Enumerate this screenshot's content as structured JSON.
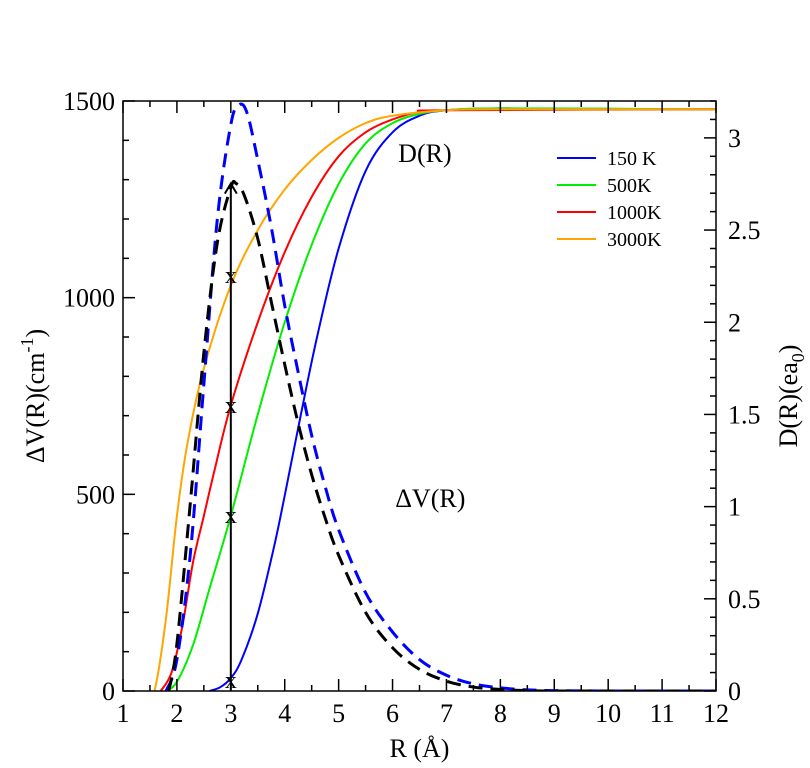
{
  "chart_data": {
    "type": "line",
    "xlabel": "R  (Å)",
    "ylabel_left": "ΔV(R)(cm-1)",
    "ylabel_left_parts": {
      "main": "ΔV(R)(cm",
      "sup": "-1",
      "close": ")"
    },
    "ylabel_right": "D(R)(ea0)",
    "ylabel_right_parts": {
      "main": "D(R)(ea",
      "sub": "0",
      "close": ")"
    },
    "xlim": [
      1,
      12
    ],
    "ylim_left": [
      0,
      1500
    ],
    "ylim_right": [
      0,
      3.2
    ],
    "xticks": [
      1,
      2,
      3,
      4,
      5,
      6,
      7,
      8,
      9,
      10,
      11,
      12
    ],
    "yticks_left": [
      0,
      500,
      1000,
      1500
    ],
    "yticks_right": [
      0,
      0.5,
      1,
      1.5,
      2,
      2.5,
      3
    ],
    "yticks_right_labels": [
      "0",
      "0.5",
      "1",
      "1.5",
      "2",
      "2.5",
      "3"
    ],
    "annotations": [
      {
        "text": "D(R)",
        "x": 6.6,
        "y": 1345
      },
      {
        "text": "ΔV(R)",
        "x": 6.7,
        "y": 468
      }
    ],
    "legend": [
      "150 K",
      "500K",
      "1000K",
      "3000K"
    ],
    "dipole_series": [
      {
        "name": "150 K",
        "color": "#0000ff",
        "axis": "right",
        "points": [
          [
            2.6,
            0
          ],
          [
            2.8,
            0.02
          ],
          [
            3.0,
            0.07
          ],
          [
            3.2,
            0.17
          ],
          [
            3.5,
            0.42
          ],
          [
            3.8,
            0.78
          ],
          [
            4.0,
            1.06
          ],
          [
            4.3,
            1.5
          ],
          [
            4.6,
            1.92
          ],
          [
            5.0,
            2.4
          ],
          [
            5.5,
            2.82
          ],
          [
            6.0,
            3.03
          ],
          [
            6.5,
            3.12
          ],
          [
            7.0,
            3.15
          ],
          [
            8.0,
            3.16
          ],
          [
            9.0,
            3.155
          ],
          [
            12.0,
            3.155
          ]
        ]
      },
      {
        "name": "500K",
        "color": "#00ee00",
        "axis": "right",
        "points": [
          [
            1.8,
            0
          ],
          [
            2.0,
            0.05
          ],
          [
            2.3,
            0.25
          ],
          [
            2.6,
            0.55
          ],
          [
            3.0,
            0.95
          ],
          [
            3.5,
            1.5
          ],
          [
            4.0,
            2.0
          ],
          [
            4.5,
            2.42
          ],
          [
            5.0,
            2.75
          ],
          [
            5.5,
            2.97
          ],
          [
            6.0,
            3.08
          ],
          [
            6.5,
            3.13
          ],
          [
            7.0,
            3.15
          ],
          [
            8.0,
            3.16
          ],
          [
            12.0,
            3.155
          ]
        ]
      },
      {
        "name": "1000K",
        "color": "#ff0000",
        "axis": "right",
        "points": [
          [
            1.7,
            0
          ],
          [
            1.9,
            0.1
          ],
          [
            2.1,
            0.35
          ],
          [
            2.3,
            0.7
          ],
          [
            2.5,
            0.95
          ],
          [
            2.7,
            1.2
          ],
          [
            3.0,
            1.55
          ],
          [
            3.5,
            2.0
          ],
          [
            4.0,
            2.38
          ],
          [
            4.5,
            2.68
          ],
          [
            5.0,
            2.9
          ],
          [
            5.5,
            3.03
          ],
          [
            6.0,
            3.1
          ],
          [
            6.5,
            3.14
          ],
          [
            7.0,
            3.15
          ],
          [
            12.0,
            3.155
          ]
        ]
      },
      {
        "name": "3000K",
        "color": "#ffa500",
        "axis": "right",
        "points": [
          [
            1.5,
            0
          ],
          [
            1.6,
            0.02
          ],
          [
            1.8,
            0.4
          ],
          [
            2.0,
            0.95
          ],
          [
            2.2,
            1.35
          ],
          [
            2.5,
            1.75
          ],
          [
            3.0,
            2.2
          ],
          [
            3.5,
            2.5
          ],
          [
            4.0,
            2.72
          ],
          [
            4.5,
            2.88
          ],
          [
            5.0,
            3.0
          ],
          [
            5.5,
            3.08
          ],
          [
            6.0,
            3.12
          ],
          [
            7.0,
            3.15
          ],
          [
            8.0,
            3.155
          ],
          [
            12.0,
            3.155
          ]
        ]
      }
    ],
    "potential_series": [
      {
        "name": "ΔV(R) blue",
        "color": "#0000ff",
        "dash": true,
        "axis": "left",
        "points": [
          [
            1.8,
            0
          ],
          [
            2.0,
            80
          ],
          [
            2.25,
            350
          ],
          [
            2.5,
            780
          ],
          [
            2.75,
            1200
          ],
          [
            3.0,
            1440
          ],
          [
            3.15,
            1490
          ],
          [
            3.3,
            1470
          ],
          [
            3.5,
            1350
          ],
          [
            3.75,
            1180
          ],
          [
            4.0,
            980
          ],
          [
            4.25,
            810
          ],
          [
            4.5,
            650
          ],
          [
            4.75,
            520
          ],
          [
            5.0,
            410
          ],
          [
            5.5,
            250
          ],
          [
            6.0,
            150
          ],
          [
            6.5,
            80
          ],
          [
            7.0,
            40
          ],
          [
            7.5,
            18
          ],
          [
            8.0,
            8
          ],
          [
            8.5,
            3
          ],
          [
            9.0,
            1
          ],
          [
            10.0,
            0
          ],
          [
            12.0,
            0
          ]
        ]
      },
      {
        "name": "ΔV(R) black",
        "color": "#000000",
        "dash": true,
        "axis": "left",
        "points": [
          [
            1.85,
            0
          ],
          [
            2.0,
            120
          ],
          [
            2.25,
            480
          ],
          [
            2.5,
            860
          ],
          [
            2.75,
            1140
          ],
          [
            3.0,
            1280
          ],
          [
            3.1,
            1290
          ],
          [
            3.25,
            1260
          ],
          [
            3.5,
            1150
          ],
          [
            3.75,
            990
          ],
          [
            4.0,
            830
          ],
          [
            4.25,
            680
          ],
          [
            4.5,
            550
          ],
          [
            4.75,
            440
          ],
          [
            5.0,
            345
          ],
          [
            5.5,
            200
          ],
          [
            6.0,
            110
          ],
          [
            6.5,
            55
          ],
          [
            7.0,
            25
          ],
          [
            7.5,
            10
          ],
          [
            8.0,
            4
          ],
          [
            8.5,
            1
          ],
          [
            9.0,
            0
          ],
          [
            12.0,
            0
          ]
        ]
      }
    ],
    "arrow": {
      "x": 3.0,
      "from": 0,
      "to": 1290,
      "color": "#000000"
    },
    "markers": [
      {
        "label": "x",
        "x": 3.0,
        "y": 1060
      },
      {
        "label": "x",
        "x": 3.0,
        "y": 730
      },
      {
        "label": "x",
        "x": 3.0,
        "y": 450
      },
      {
        "label": "x",
        "x": 3.0,
        "y": 30
      }
    ]
  }
}
